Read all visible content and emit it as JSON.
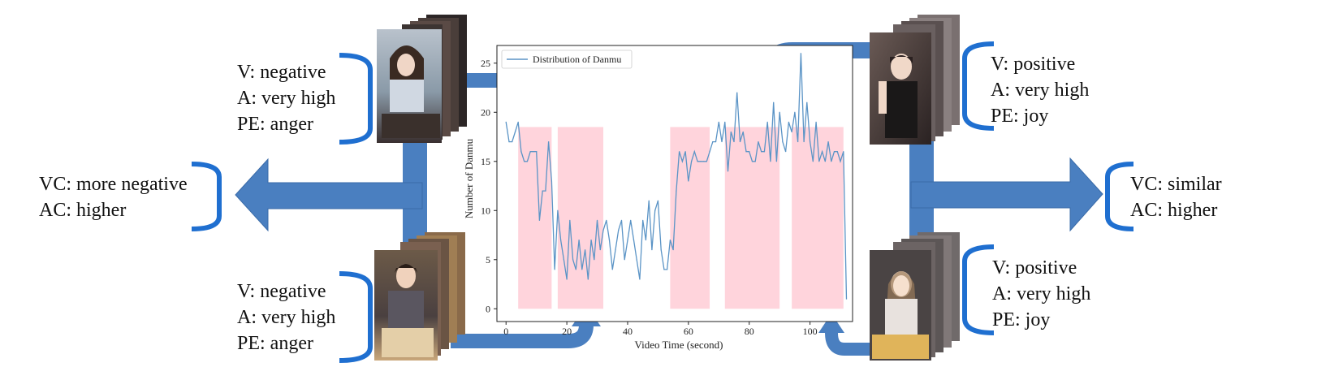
{
  "colors": {
    "arrow": "#4a7fc0",
    "arrow_edge": "#3a6ba8",
    "bracket": "#1f6fd0",
    "highlight": "#ffd4dc",
    "line": "#5b94c6",
    "frame_dark": "#3a3030"
  },
  "panels": {
    "top_left": {
      "v": "V: negative",
      "a": "A: very high",
      "pe": "PE: anger"
    },
    "bottom_left": {
      "v": "V: negative",
      "a": "A: very high",
      "pe": "PE: anger"
    },
    "top_right": {
      "v": "V: positive",
      "a": "A: very high",
      "pe": "PE: joy"
    },
    "bottom_right": {
      "v": "V: positive",
      "a": "A: very high",
      "pe": "PE: joy"
    }
  },
  "comparisons": {
    "left": {
      "vc": "VC: more negative",
      "ac": "AC: higher"
    },
    "right": {
      "vc": "VC: similar",
      "ac": "AC: higher"
    }
  },
  "icons": [
    "video-frame-stack-icon",
    "bracket-icon",
    "arrow-icon"
  ],
  "chart_data": {
    "type": "line",
    "legend": "Distribution of Danmu",
    "legend_position": "top-left",
    "xlabel": "Video Time (second)",
    "ylabel": "Number of Danmu",
    "xlim": [
      -3,
      114
    ],
    "ylim": [
      -1.3,
      26.8
    ],
    "xticks": [
      0,
      20,
      40,
      60,
      80,
      100
    ],
    "yticks": [
      0,
      5,
      10,
      15,
      20,
      25
    ],
    "grid": false,
    "highlighted_ranges": [
      [
        4,
        15
      ],
      [
        17,
        32
      ],
      [
        54,
        67
      ],
      [
        72,
        90
      ],
      [
        94,
        111
      ]
    ],
    "x": [
      0,
      1,
      2,
      3,
      4,
      5,
      6,
      7,
      8,
      9,
      10,
      11,
      12,
      13,
      14,
      15,
      16,
      17,
      18,
      19,
      20,
      21,
      22,
      23,
      24,
      25,
      26,
      27,
      28,
      29,
      30,
      31,
      32,
      33,
      34,
      35,
      36,
      37,
      38,
      39,
      40,
      41,
      42,
      43,
      44,
      45,
      46,
      47,
      48,
      49,
      50,
      51,
      52,
      53,
      54,
      55,
      56,
      57,
      58,
      59,
      60,
      61,
      62,
      63,
      64,
      65,
      66,
      67,
      68,
      69,
      70,
      71,
      72,
      73,
      74,
      75,
      76,
      77,
      78,
      79,
      80,
      81,
      82,
      83,
      84,
      85,
      86,
      87,
      88,
      89,
      90,
      91,
      92,
      93,
      94,
      95,
      96,
      97,
      98,
      99,
      100,
      101,
      102,
      103,
      104,
      105,
      106,
      107,
      108,
      109,
      110,
      111,
      112
    ],
    "values": [
      19,
      17,
      17,
      18,
      19,
      16,
      15,
      15,
      16,
      16,
      16,
      9,
      12,
      12,
      17,
      13,
      4,
      10,
      7,
      5,
      3,
      9,
      5,
      4,
      7,
      4,
      6,
      3,
      7,
      5,
      9,
      6,
      8,
      9,
      7,
      4,
      6,
      8,
      9,
      5,
      7,
      9,
      7,
      5,
      3,
      9,
      7,
      11,
      6,
      10,
      11,
      6,
      4,
      4,
      7,
      6,
      12,
      16,
      15,
      16,
      13,
      15,
      16,
      15,
      15,
      15,
      15,
      16,
      17,
      17,
      19,
      17,
      19,
      14,
      18,
      17,
      22,
      17,
      18,
      16,
      16,
      15,
      15,
      17,
      16,
      16,
      19,
      15,
      21,
      15,
      20,
      17,
      16,
      19,
      18,
      20,
      17,
      26,
      17,
      21,
      17,
      15,
      19,
      15,
      16,
      15,
      17,
      15,
      16,
      16,
      15,
      16,
      1
    ]
  }
}
